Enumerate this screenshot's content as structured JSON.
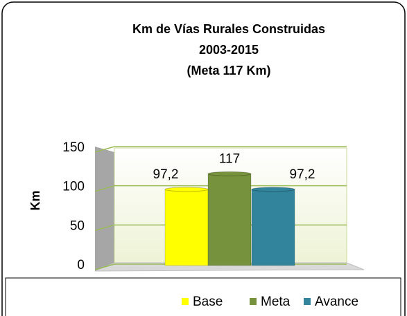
{
  "chart_data": {
    "type": "bar",
    "title": [
      "Km de Vías  Rurales Construidas",
      "2003-2015",
      "(Meta 117 Km)"
    ],
    "y_label": "Km",
    "categories": [
      null
    ],
    "series": [
      {
        "name": "Base",
        "color": "#ffff00",
        "values": [
          97.2
        ],
        "value_labels": [
          "97,2"
        ]
      },
      {
        "name": "Meta",
        "color": "#76923c",
        "values": [
          117
        ],
        "value_labels": [
          "117"
        ]
      },
      {
        "name": "Avance",
        "color": "#31849b",
        "values": [
          97.2
        ],
        "value_labels": [
          "97,2"
        ]
      }
    ],
    "ylim": [
      0,
      150
    ],
    "yticks": [
      0,
      50,
      100,
      150
    ],
    "grid": true
  }
}
